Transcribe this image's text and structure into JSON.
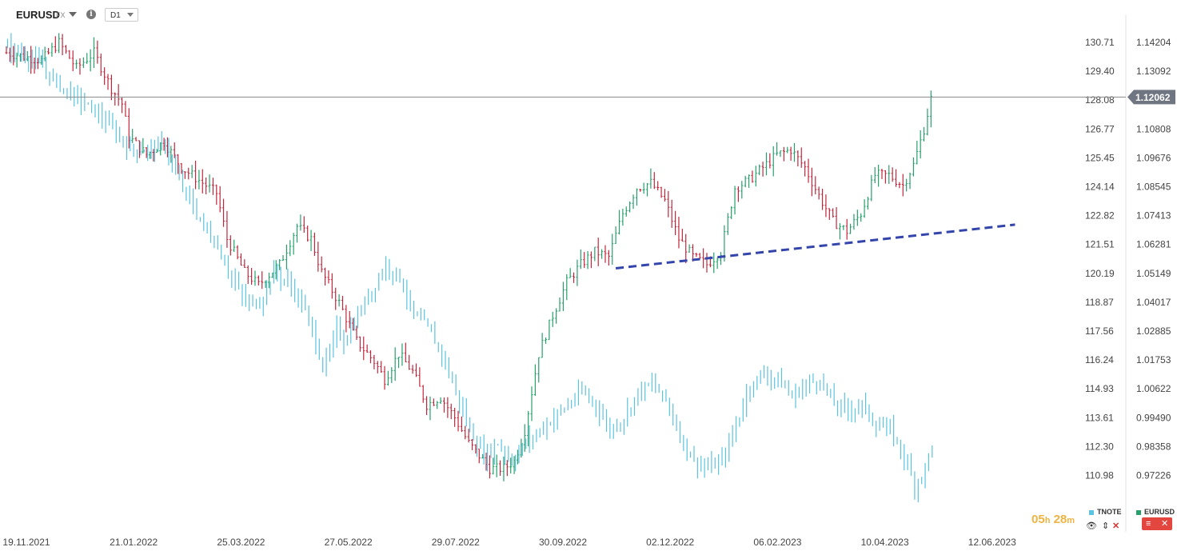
{
  "header": {
    "symbol": "EURUSD",
    "market": "FX",
    "timeframe": "D1",
    "info_icon": "info-icon"
  },
  "colors": {
    "up": "#27a06b",
    "down": "#c1273c",
    "tnote": "#5bc3e0",
    "trendline": "#3344aa",
    "current_line": "#888888",
    "badge": "#707681"
  },
  "chart_data": {
    "type": "bar",
    "x_labels": [
      "19.11.2021",
      "21.01.2022",
      "25.03.2022",
      "27.05.2022",
      "29.07.2022",
      "30.09.2022",
      "02.12.2022",
      "06.02.2023",
      "10.04.2023",
      "12.06.2023"
    ],
    "left_axis": {
      "ticks": [
        "130.71",
        "129.40",
        "128.08",
        "126.77",
        "125.45",
        "124.14",
        "122.82",
        "121.51",
        "120.19",
        "118.87",
        "117.56",
        "116.24",
        "114.93",
        "113.61",
        "112.30",
        "110.98"
      ]
    },
    "right_axis": {
      "ticks": [
        "1.14204",
        "1.13092",
        "1.12062",
        "1.10808",
        "1.09676",
        "1.08545",
        "1.07413",
        "1.06281",
        "1.05149",
        "1.04017",
        "1.02885",
        "1.01753",
        "1.00622",
        "0.99490",
        "0.98358",
        "0.97226"
      ]
    },
    "current_price": "1.12062",
    "series": [
      {
        "name": "EURUSD",
        "style": "ohlc",
        "anchors": [
          [
            0,
            1.138
          ],
          [
            10,
            1.135
          ],
          [
            15,
            1.142
          ],
          [
            20,
            1.132
          ],
          [
            25,
            1.138
          ],
          [
            30,
            1.124
          ],
          [
            33,
            1.118
          ],
          [
            35,
            1.105
          ],
          [
            40,
            1.098
          ],
          [
            45,
            1.103
          ],
          [
            50,
            1.093
          ],
          [
            55,
            1.088
          ],
          [
            60,
            1.083
          ],
          [
            63,
            1.065
          ],
          [
            68,
            1.052
          ],
          [
            72,
            1.047
          ],
          [
            78,
            1.055
          ],
          [
            83,
            1.07
          ],
          [
            87,
            1.065
          ],
          [
            90,
            1.052
          ],
          [
            95,
            1.04
          ],
          [
            100,
            1.025
          ],
          [
            105,
            1.017
          ],
          [
            108,
            1.01
          ],
          [
            112,
            1.02
          ],
          [
            116,
            1.013
          ],
          [
            120,
            1.0
          ],
          [
            124,
            1.003
          ],
          [
            128,
            0.995
          ],
          [
            132,
            0.985
          ],
          [
            135,
            0.98
          ],
          [
            138,
            0.975
          ],
          [
            142,
            0.975
          ],
          [
            145,
            0.978
          ],
          [
            148,
            0.99
          ],
          [
            152,
            1.02
          ],
          [
            156,
            1.035
          ],
          [
            160,
            1.048
          ],
          [
            164,
            1.055
          ],
          [
            168,
            1.06
          ],
          [
            172,
            1.058
          ],
          [
            176,
            1.075
          ],
          [
            180,
            1.085
          ],
          [
            184,
            1.087
          ],
          [
            188,
            1.08
          ],
          [
            192,
            1.065
          ],
          [
            196,
            1.058
          ],
          [
            200,
            1.055
          ],
          [
            204,
            1.06
          ],
          [
            208,
            1.085
          ],
          [
            212,
            1.088
          ],
          [
            216,
            1.093
          ],
          [
            220,
            1.098
          ],
          [
            224,
            1.1
          ],
          [
            228,
            1.093
          ],
          [
            232,
            1.082
          ],
          [
            236,
            1.072
          ],
          [
            240,
            1.068
          ],
          [
            244,
            1.075
          ],
          [
            248,
            1.09
          ],
          [
            252,
            1.09
          ],
          [
            256,
            1.086
          ],
          [
            259,
            1.094
          ],
          [
            262,
            1.108
          ],
          [
            264,
            1.12
          ]
        ]
      },
      {
        "name": "TNOTE",
        "style": "bars",
        "anchors": [
          [
            0,
            1.14
          ],
          [
            8,
            1.135
          ],
          [
            15,
            1.125
          ],
          [
            20,
            1.12
          ],
          [
            25,
            1.115
          ],
          [
            30,
            1.108
          ],
          [
            35,
            1.1
          ],
          [
            40,
            1.1
          ],
          [
            45,
            1.102
          ],
          [
            48,
            1.09
          ],
          [
            52,
            1.08
          ],
          [
            56,
            1.07
          ],
          [
            60,
            1.062
          ],
          [
            64,
            1.05
          ],
          [
            68,
            1.04
          ],
          [
            72,
            1.04
          ],
          [
            76,
            1.052
          ],
          [
            80,
            1.048
          ],
          [
            84,
            1.04
          ],
          [
            88,
            1.025
          ],
          [
            90,
            1.015
          ],
          [
            92,
            1.02
          ],
          [
            94,
            1.03
          ],
          [
            96,
            1.025
          ],
          [
            100,
            1.035
          ],
          [
            104,
            1.045
          ],
          [
            108,
            1.055
          ],
          [
            112,
            1.05
          ],
          [
            116,
            1.035
          ],
          [
            120,
            1.03
          ],
          [
            124,
            1.02
          ],
          [
            128,
            1.005
          ],
          [
            132,
            0.99
          ],
          [
            136,
            0.98
          ],
          [
            140,
            0.985
          ],
          [
            144,
            0.978
          ],
          [
            148,
            0.985
          ],
          [
            152,
            0.99
          ],
          [
            156,
            0.995
          ],
          [
            160,
            1.0
          ],
          [
            164,
            1.005
          ],
          [
            168,
            1.0
          ],
          [
            172,
            0.99
          ],
          [
            176,
            0.995
          ],
          [
            180,
            1.005
          ],
          [
            184,
            1.008
          ],
          [
            188,
            1.002
          ],
          [
            192,
            0.988
          ],
          [
            196,
            0.978
          ],
          [
            200,
            0.975
          ],
          [
            204,
            0.978
          ],
          [
            208,
            0.992
          ],
          [
            212,
            1.008
          ],
          [
            216,
            1.012
          ],
          [
            220,
            1.01
          ],
          [
            224,
            1.003
          ],
          [
            228,
            1.008
          ],
          [
            232,
            1.01
          ],
          [
            236,
            1.0
          ],
          [
            240,
            0.998
          ],
          [
            244,
            1.0
          ],
          [
            248,
            0.992
          ],
          [
            252,
            0.99
          ],
          [
            256,
            0.98
          ],
          [
            259,
            0.968
          ],
          [
            262,
            0.975
          ],
          [
            264,
            0.985
          ]
        ]
      }
    ],
    "trendline": {
      "style": "dashed",
      "points": [
        [
          174,
          1.0535
        ],
        [
          288,
          1.0706
        ]
      ]
    },
    "legend": [
      "TNOTE",
      "EURUSD"
    ]
  },
  "footer": {
    "countdown_hours": "05",
    "countdown_minutes": "28",
    "hour_unit": "h",
    "minute_unit": "m",
    "legend_tnote": "TNOTE",
    "legend_eurusd": "EURUSD"
  }
}
